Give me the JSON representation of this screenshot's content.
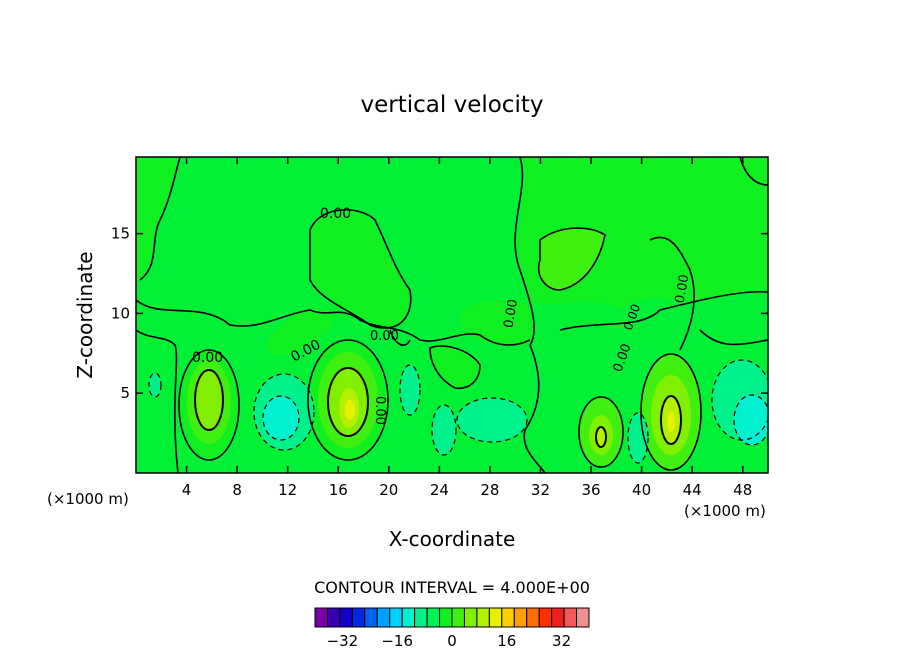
{
  "chart_data": {
    "type": "heatmap",
    "title": "vertical velocity",
    "xlabel": "X-coordinate",
    "ylabel": "Z-coordinate",
    "x_unit_left": "(×1000 m)",
    "x_unit_right": "(×1000 m)",
    "xlim": [
      0,
      50
    ],
    "ylim": [
      0,
      19.8
    ],
    "x_ticks": [
      4,
      8,
      12,
      16,
      20,
      24,
      28,
      32,
      36,
      40,
      44,
      48
    ],
    "y_ticks": [
      5,
      10,
      15
    ],
    "contour_interval_text": "CONTOUR INTERVAL = 4.000E+00",
    "contour_labels": [
      "0.00",
      "0.00",
      "0.00",
      "0.00",
      "0.00",
      "0.00",
      "0.00",
      "0.00",
      "0.00"
    ],
    "colorbar": {
      "colors": [
        "#7a00a8",
        "#3a00b0",
        "#1400c8",
        "#0028e0",
        "#0064f0",
        "#00a0ff",
        "#00d2ff",
        "#00f0d0",
        "#00f08c",
        "#00f050",
        "#10f020",
        "#40f010",
        "#80f000",
        "#b4f000",
        "#e8f000",
        "#ffd000",
        "#ffa000",
        "#ff6e00",
        "#ff3000",
        "#f02020",
        "#f05a5a",
        "#f09090"
      ],
      "tick_labels": [
        "−32",
        "−16",
        "0",
        "16",
        "32"
      ],
      "tick_values": [
        -32,
        -16,
        0,
        16,
        32
      ],
      "min": -40,
      "max": 40
    },
    "cells": [
      {
        "x": 6,
        "z": 4,
        "w": 4
      },
      {
        "x": 17,
        "z": 4,
        "w": 8
      },
      {
        "x": 37,
        "z": 2.5,
        "w": 8
      },
      {
        "x": 42.5,
        "z": 3.3,
        "w": 8
      },
      {
        "x": 11,
        "z": 3.5,
        "w": -8
      },
      {
        "x": 48,
        "z": 3.3,
        "w": -8
      }
    ]
  }
}
